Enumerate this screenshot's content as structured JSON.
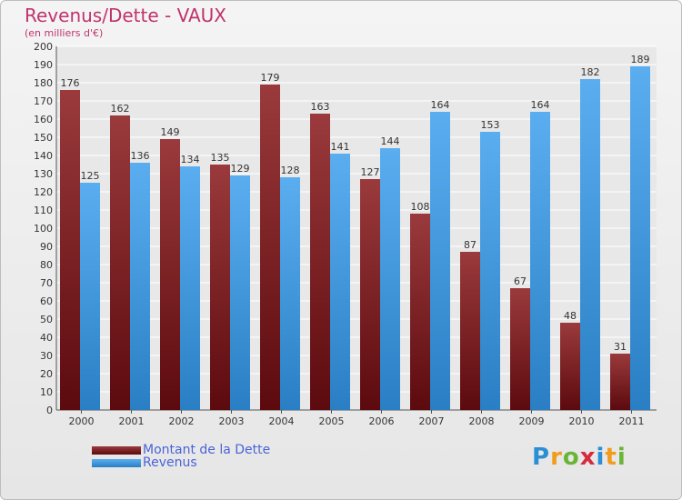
{
  "chart_data": {
    "type": "bar",
    "title": "Revenus/Dette - VAUX",
    "subtitle": "(en milliers d'€)",
    "categories": [
      "2000",
      "2001",
      "2002",
      "2003",
      "2004",
      "2005",
      "2006",
      "2007",
      "2008",
      "2009",
      "2010",
      "2011"
    ],
    "series": [
      {
        "name": "Montant de la Dette",
        "values": [
          176,
          162,
          149,
          135,
          179,
          163,
          127,
          108,
          87,
          67,
          48,
          31
        ],
        "color": "#7a1a1e"
      },
      {
        "name": "Revenus",
        "values": [
          125,
          136,
          134,
          129,
          128,
          141,
          144,
          164,
          153,
          164,
          182,
          189
        ],
        "color": "#3d95dd"
      }
    ],
    "ylim": [
      0,
      200
    ],
    "ytick_step": 10,
    "grid": true,
    "legend_position": "bottom-left",
    "data_labels": true
  },
  "logo": {
    "text": "Proxiti",
    "colors": [
      "#2b8fd6",
      "#f29b1c",
      "#6bb536",
      "#d62b3f",
      "#2b8fd6",
      "#f29b1c",
      "#6bb536"
    ]
  }
}
